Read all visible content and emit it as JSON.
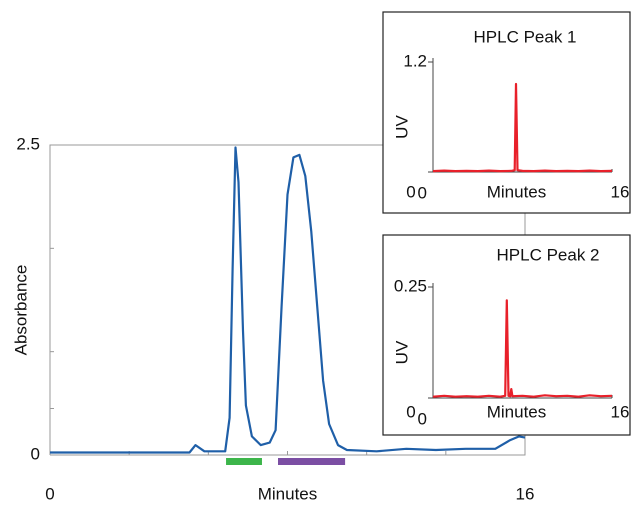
{
  "chart_data": [
    {
      "type": "line",
      "xlabel": "Minutes",
      "ylabel": "Absorbance",
      "xlim": [
        0,
        16
      ],
      "xticks": [
        0,
        16
      ],
      "ylim": [
        0,
        2.5
      ],
      "yticks": [
        0,
        2.5
      ],
      "series": [
        {
          "color": "#1f5fa8",
          "x": [
            0,
            2,
            4.7,
            4.9,
            5.2,
            5.9,
            6.05,
            6.15,
            6.25,
            6.35,
            6.5,
            6.6,
            6.8,
            7.1,
            7.4,
            7.6,
            7.8,
            8.0,
            8.2,
            8.4,
            8.6,
            8.8,
            9.0,
            9.2,
            9.4,
            9.7,
            10,
            11,
            12,
            13,
            14,
            15,
            15.5,
            15.8,
            16
          ],
          "values": [
            0.02,
            0.02,
            0.02,
            0.08,
            0.03,
            0.03,
            0.3,
            1.5,
            2.48,
            2.2,
            1.0,
            0.4,
            0.15,
            0.08,
            0.1,
            0.2,
            1.2,
            2.1,
            2.4,
            2.42,
            2.25,
            1.8,
            1.2,
            0.6,
            0.25,
            0.08,
            0.04,
            0.03,
            0.05,
            0.04,
            0.05,
            0.05,
            0.12,
            0.15,
            0.14
          ]
        }
      ],
      "fractions": [
        {
          "color": "#3cb54a",
          "start": 5.93,
          "end": 7.14
        },
        {
          "color": "#7b4ea3",
          "start": 7.68,
          "end": 9.94
        }
      ]
    },
    {
      "type": "line",
      "title": "HPLC Peak 1",
      "xlabel": "Minutes",
      "ylabel": "UV",
      "xlim": [
        0,
        16
      ],
      "xticks": [
        0,
        16
      ],
      "ylim": [
        0,
        1.2
      ],
      "yticks": [
        0,
        1.2
      ],
      "series": [
        {
          "color": "#e8202a",
          "x": [
            0,
            1,
            2,
            3,
            4,
            5,
            6,
            7,
            7.3,
            7.42,
            7.55,
            8,
            9,
            10,
            11,
            12,
            13,
            14,
            15,
            16
          ],
          "values": [
            0.01,
            0.015,
            0.01,
            0.012,
            0.01,
            0.015,
            0.01,
            0.012,
            0.02,
            0.96,
            0.02,
            0.012,
            0.01,
            0.015,
            0.01,
            0.012,
            0.01,
            0.015,
            0.01,
            0.012
          ]
        }
      ]
    },
    {
      "type": "line",
      "title": "HPLC Peak 2",
      "xlabel": "Minutes",
      "ylabel": "UV",
      "xlim": [
        0,
        16
      ],
      "xticks": [
        0,
        16
      ],
      "ylim": [
        0,
        0.25
      ],
      "yticks": [
        0,
        0.25
      ],
      "series": [
        {
          "color": "#e8202a",
          "x": [
            0,
            1,
            2,
            3,
            4,
            5,
            6,
            6.45,
            6.6,
            6.75,
            6.9,
            7.0,
            7.1,
            8,
            9,
            10,
            11,
            12,
            13,
            14,
            15,
            16
          ],
          "values": [
            0.003,
            0.005,
            0.003,
            0.004,
            0.003,
            0.005,
            0.003,
            0.005,
            0.22,
            0.005,
            0.004,
            0.02,
            0.004,
            0.005,
            0.003,
            0.006,
            0.004,
            0.005,
            0.003,
            0.006,
            0.004,
            0.005
          ]
        }
      ]
    }
  ]
}
